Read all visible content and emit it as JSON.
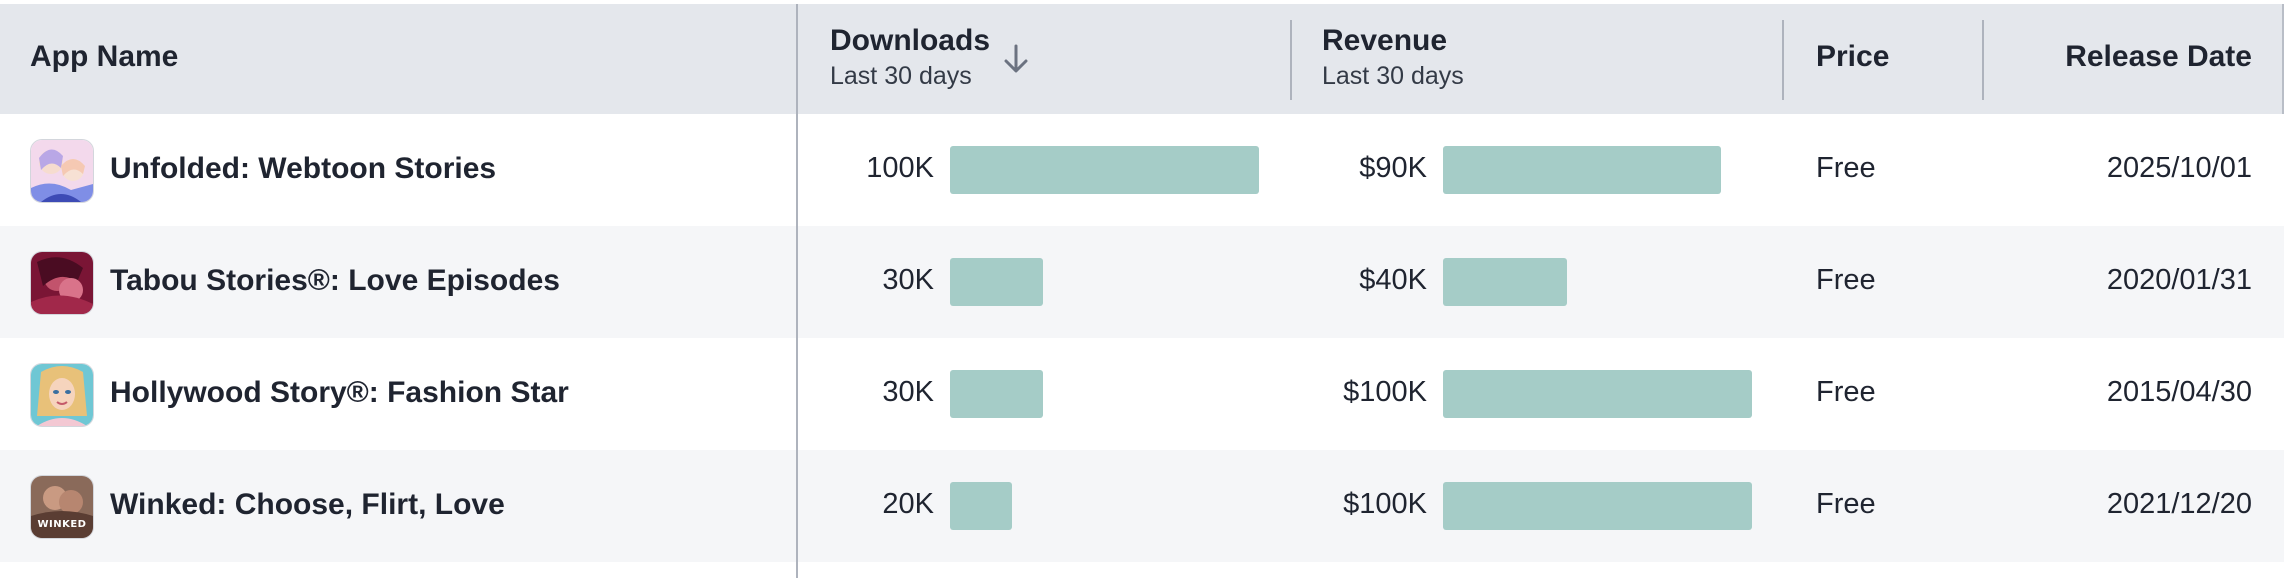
{
  "columns": {
    "app_name": "App Name",
    "downloads": {
      "label": "Downloads",
      "sub": "Last 30 days"
    },
    "revenue": {
      "label": "Revenue",
      "sub": "Last 30 days"
    },
    "price": "Price",
    "release_date": "Release Date"
  },
  "sort_icon": "arrow-down-icon",
  "bar_color": "#a5ccc7",
  "rows": [
    {
      "name": "Unfolded: Webtoon Stories",
      "icon": "unfolded-app-icon",
      "downloads": "100K",
      "downloads_value": 100000,
      "revenue": "$90K",
      "revenue_value": 90000,
      "price": "Free",
      "release_date": "2025/10/01"
    },
    {
      "name": "Tabou Stories®: Love Episodes",
      "icon": "tabou-app-icon",
      "downloads": "30K",
      "downloads_value": 30000,
      "revenue": "$40K",
      "revenue_value": 40000,
      "price": "Free",
      "release_date": "2020/01/31"
    },
    {
      "name": "Hollywood Story®: Fashion Star",
      "icon": "hollywood-app-icon",
      "downloads": "30K",
      "downloads_value": 30000,
      "revenue": "$100K",
      "revenue_value": 100000,
      "price": "Free",
      "release_date": "2015/04/30"
    },
    {
      "name": "Winked: Choose, Flirt, Love",
      "icon": "winked-app-icon",
      "icon_text": "WINKED",
      "downloads": "20K",
      "downloads_value": 20000,
      "revenue": "$100K",
      "revenue_value": 100000,
      "price": "Free",
      "release_date": "2021/12/20"
    }
  ]
}
